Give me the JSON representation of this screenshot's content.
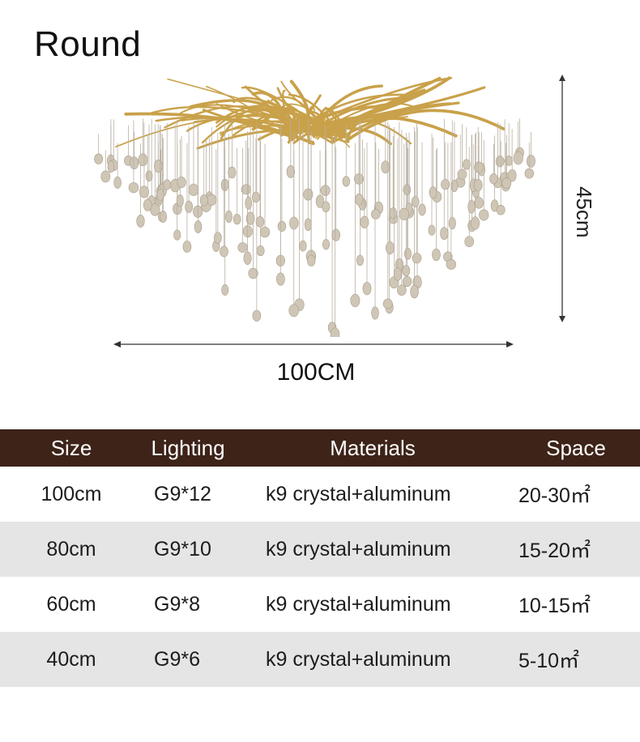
{
  "header": {
    "title": "Round"
  },
  "dimensions": {
    "height_label": "45cm",
    "width_label": "100CM"
  },
  "product": {
    "image_icon": "crystal-chandelier-image",
    "metal_color": "#c9a14a",
    "crystal_color": "#cfc6b6"
  },
  "table": {
    "header_bg": "#3d2318",
    "alt_row_bg": "#e5e5e5",
    "columns": [
      "Size",
      "Lighting",
      "Materials",
      "Space"
    ],
    "rows": [
      [
        "100cm",
        "G9*12",
        "k9 crystal+aluminum",
        "20-30㎡"
      ],
      [
        "80cm",
        "G9*10",
        "k9 crystal+aluminum",
        "15-20㎡"
      ],
      [
        "60cm",
        "G9*8",
        "k9 crystal+aluminum",
        "10-15㎡"
      ],
      [
        "40cm",
        "G9*6",
        "k9 crystal+aluminum",
        "5-10㎡"
      ]
    ]
  }
}
